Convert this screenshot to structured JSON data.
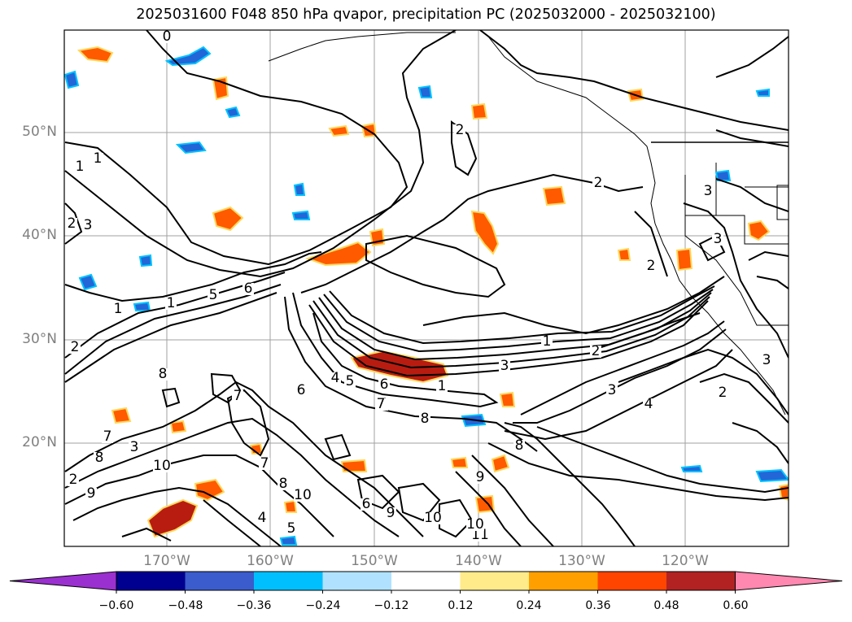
{
  "title": "2025031600 F048 850 hPa qvapor, precipitation PC (2025032000 - 2025032100)",
  "latitude_labels": [
    "50°N",
    "40°N",
    "30°N",
    "20°N"
  ],
  "longitude_labels": [
    "170°W",
    "160°W",
    "150°W",
    "140°W",
    "130°W",
    "120°W"
  ],
  "colorbar": {
    "tick_labels": [
      "−0.60",
      "−0.48",
      "−0.36",
      "−0.24",
      "−0.12",
      "0.12",
      "0.24",
      "0.36",
      "0.48",
      "0.60"
    ],
    "colors": {
      "under": "#9b30d0",
      "bins": [
        "#000090",
        "#3a5ccc",
        "#00bfff",
        "#b0e2ff",
        "#ffffff",
        "#ffeb8a",
        "#ff9f00",
        "#ff4500",
        "#b22222"
      ],
      "over": "#ff88b0"
    }
  },
  "contour_labels": [
    "0",
    "1",
    "1",
    "2",
    "1",
    "2",
    "3",
    "2",
    "2",
    "3",
    "6",
    "1",
    "5",
    "3",
    "2",
    "1",
    "7",
    "4",
    "5",
    "6",
    "3",
    "7",
    "1",
    "2",
    "3",
    "4",
    "2",
    "2",
    "8",
    "7",
    "8",
    "7",
    "8",
    "6",
    "8",
    "7",
    "10",
    "9",
    "8",
    "10",
    "9",
    "6",
    "4",
    "5",
    "10",
    "11",
    "9",
    "10",
    "3",
    "3"
  ],
  "anomaly_colors": {
    "positive_outline": "#ffd75a",
    "positive_fill": "#ff5a00",
    "strong_positive": "#b81c10",
    "negative_fill": "#2266d8",
    "negative_outline": "#00c3ff"
  }
}
